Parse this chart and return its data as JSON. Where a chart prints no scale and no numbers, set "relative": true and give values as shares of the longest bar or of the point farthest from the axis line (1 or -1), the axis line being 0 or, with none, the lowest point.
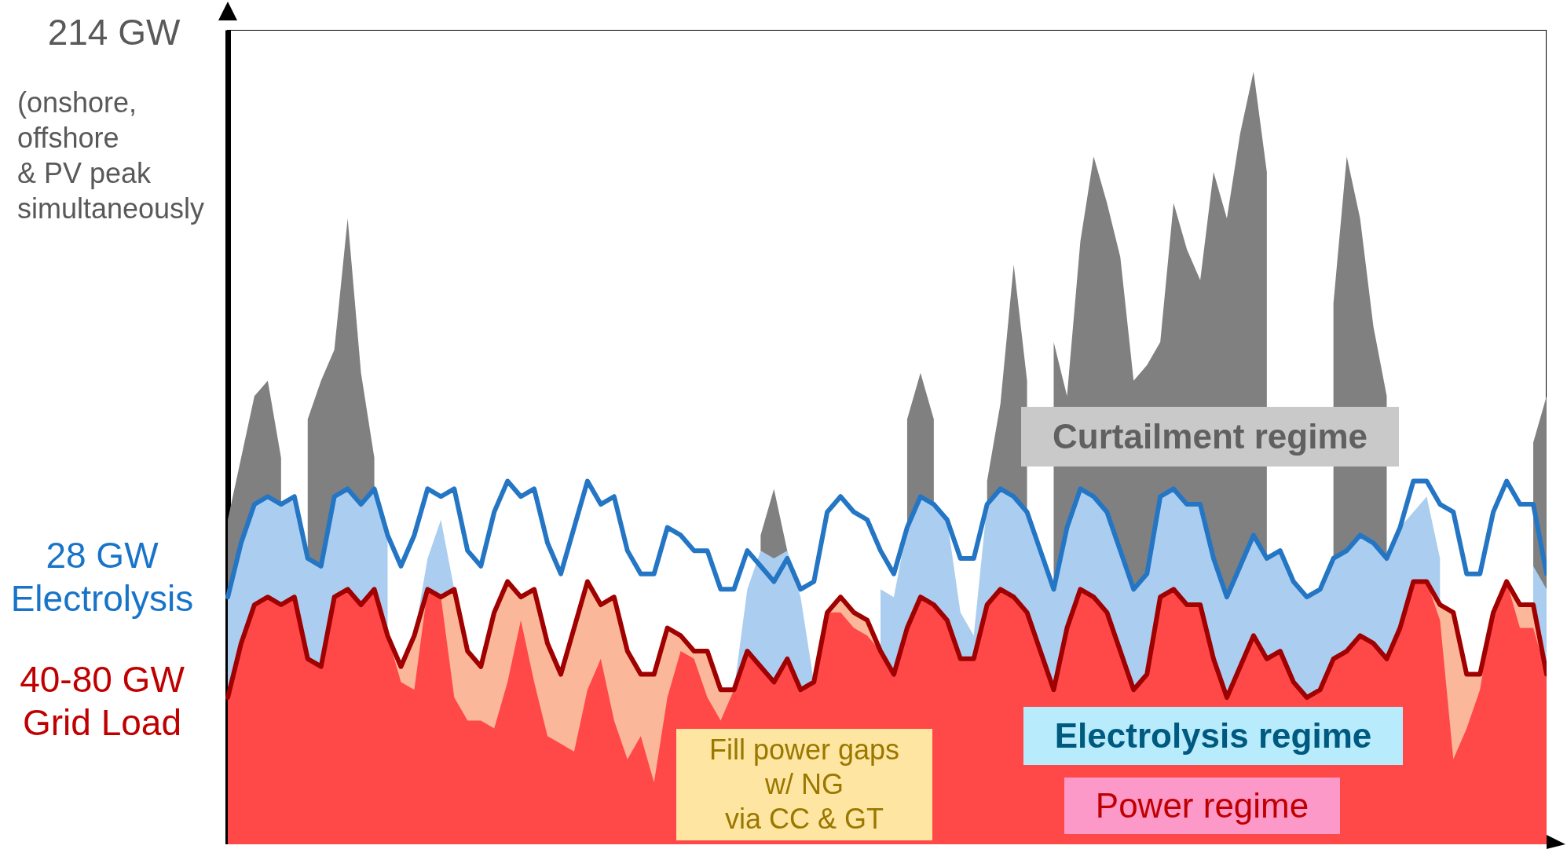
{
  "chart_data": {
    "type": "area",
    "relative": true,
    "categories": [
      null,
      null,
      null,
      null,
      null,
      null,
      null,
      null,
      null,
      null,
      null,
      null,
      null,
      null,
      null,
      null,
      null,
      null,
      null,
      null,
      null,
      null,
      null,
      null,
      null,
      null,
      null,
      null,
      null,
      null,
      null,
      null,
      null,
      null,
      null,
      null,
      null,
      null,
      null,
      null,
      null,
      null,
      null,
      null,
      null,
      null,
      null,
      null,
      null,
      null,
      null,
      null,
      null,
      null,
      null,
      null,
      null,
      null,
      null,
      null,
      null,
      null,
      null,
      null,
      null,
      null,
      null,
      null,
      null,
      null,
      null,
      null,
      null,
      null,
      null,
      null,
      null,
      null,
      null,
      null,
      null,
      null,
      null,
      null,
      null,
      null,
      null,
      null,
      null,
      null,
      null,
      null,
      null,
      null,
      null,
      null,
      null,
      null,
      null,
      null
    ],
    "series": [
      {
        "type": "area",
        "color": "#808080",
        "values": [
          0.42,
          0.5,
          0.58,
          0.6,
          0.5,
          null,
          0.55,
          0.6,
          0.64,
          0.81,
          0.61,
          0.5,
          null,
          null,
          null,
          null,
          null,
          null,
          null,
          null,
          null,
          null,
          null,
          null,
          null,
          null,
          null,
          null,
          null,
          null,
          null,
          null,
          null,
          null,
          null,
          null,
          null,
          null,
          null,
          null,
          0.4,
          0.46,
          0.38,
          null,
          null,
          null,
          null,
          null,
          null,
          null,
          null,
          0.55,
          0.61,
          0.55,
          null,
          null,
          null,
          0.47,
          0.57,
          0.75,
          0.6,
          null,
          0.65,
          0.58,
          0.78,
          0.89,
          0.83,
          0.76,
          0.6,
          0.62,
          0.65,
          0.83,
          0.77,
          0.73,
          0.87,
          0.81,
          0.92,
          1.0,
          0.87,
          null,
          null,
          null,
          null,
          0.7,
          0.89,
          0.81,
          0.67,
          0.58,
          null,
          null,
          null,
          null,
          null,
          null,
          null,
          null,
          null,
          null,
          0.52,
          0.58
        ]
      },
      {
        "type": "area",
        "color": "#abcef0",
        "values": [
          0.32,
          0.39,
          0.44,
          0.45,
          0.44,
          0.45,
          0.37,
          0.36,
          0.45,
          0.46,
          0.44,
          0.46,
          0.4,
          null,
          0.27,
          0.37,
          0.42,
          0.33,
          null,
          null,
          null,
          null,
          null,
          null,
          null,
          null,
          null,
          null,
          null,
          null,
          null,
          null,
          null,
          null,
          null,
          null,
          null,
          null,
          0.2,
          0.33,
          0.38,
          0.37,
          0.38,
          0.32,
          0.21,
          null,
          null,
          null,
          null,
          0.33,
          0.32,
          0.41,
          0.45,
          0.44,
          0.42,
          0.3,
          0.27,
          0.44,
          0.46,
          0.45,
          0.43,
          0.38,
          0.33,
          0.41,
          0.46,
          0.45,
          0.43,
          0.38,
          0.33,
          0.35,
          0.45,
          0.46,
          0.44,
          0.44,
          0.37,
          0.32,
          0.36,
          0.4,
          0.37,
          0.38,
          0.34,
          0.32,
          0.33,
          0.37,
          0.38,
          0.4,
          0.39,
          0.37,
          0.41,
          0.43,
          0.45,
          0.37,
          null,
          null,
          null,
          null,
          null,
          null,
          0.36,
          0.33
        ]
      },
      {
        "type": "area",
        "color": "#fbb79a",
        "values": [
          null,
          null,
          null,
          null,
          null,
          null,
          null,
          null,
          null,
          null,
          null,
          null,
          0.27,
          0.23,
          0.27,
          0.33,
          0.32,
          0.33,
          0.25,
          0.23,
          0.3,
          0.34,
          0.32,
          0.33,
          0.26,
          0.22,
          0.28,
          0.34,
          0.31,
          0.32,
          0.25,
          0.22,
          0.22,
          0.28,
          0.27,
          0.25,
          0.25,
          0.2,
          0.2,
          null,
          null,
          null,
          null,
          null,
          null,
          0.3,
          0.32,
          0.3,
          0.29,
          0.25,
          null,
          null,
          null,
          null,
          null,
          null,
          null,
          null,
          null,
          null,
          null,
          null,
          null,
          null,
          null,
          null,
          null,
          null,
          null,
          null,
          null,
          null,
          null,
          null,
          null,
          null,
          null,
          null,
          null,
          null,
          null,
          null,
          null,
          null,
          null,
          null,
          null,
          null,
          null,
          null,
          0.34,
          0.31,
          0.3,
          0.22,
          0.22,
          0.3,
          0.34,
          0.31,
          0.31,
          0.22
        ]
      },
      {
        "type": "area",
        "color": "#ff4848",
        "values": [
          0.19,
          0.26,
          0.31,
          0.32,
          0.31,
          0.32,
          0.24,
          0.23,
          0.32,
          0.33,
          0.31,
          0.33,
          0.27,
          0.21,
          0.2,
          0.33,
          0.32,
          0.19,
          0.16,
          0.16,
          0.15,
          0.21,
          0.29,
          0.21,
          0.14,
          0.13,
          0.12,
          0.2,
          0.24,
          0.16,
          0.11,
          0.14,
          0.08,
          0.19,
          0.25,
          0.24,
          0.19,
          0.16,
          0.2,
          0.25,
          0.23,
          0.21,
          0.24,
          0.2,
          0.21,
          0.3,
          0.3,
          0.28,
          0.27,
          0.25,
          0.22,
          0.28,
          0.32,
          0.31,
          0.29,
          0.24,
          0.24,
          0.31,
          0.33,
          0.32,
          0.3,
          0.25,
          0.2,
          0.28,
          0.33,
          0.32,
          0.3,
          0.25,
          0.2,
          0.22,
          0.32,
          0.33,
          0.31,
          0.31,
          0.24,
          0.19,
          0.23,
          0.27,
          0.24,
          0.25,
          0.21,
          0.19,
          0.2,
          0.24,
          0.25,
          0.27,
          0.26,
          0.24,
          0.28,
          0.34,
          0.34,
          0.29,
          0.11,
          0.15,
          0.2,
          0.3,
          0.34,
          0.28,
          0.28,
          0.22
        ]
      },
      {
        "type": "line",
        "color": "#2476c4",
        "values": [
          0.32,
          0.39,
          0.44,
          0.45,
          0.44,
          0.45,
          0.37,
          0.36,
          0.45,
          0.46,
          0.44,
          0.46,
          0.4,
          0.36,
          0.4,
          0.46,
          0.45,
          0.46,
          0.38,
          0.36,
          0.43,
          0.47,
          0.45,
          0.46,
          0.39,
          0.35,
          0.41,
          0.47,
          0.44,
          0.45,
          0.38,
          0.35,
          0.35,
          0.41,
          0.4,
          0.38,
          0.38,
          0.33,
          0.33,
          0.38,
          0.36,
          0.34,
          0.37,
          0.33,
          0.34,
          0.43,
          0.45,
          0.43,
          0.42,
          0.38,
          0.35,
          0.41,
          0.45,
          0.44,
          0.42,
          0.37,
          0.37,
          0.44,
          0.46,
          0.45,
          0.43,
          0.38,
          0.33,
          0.41,
          0.46,
          0.45,
          0.43,
          0.38,
          0.33,
          0.35,
          0.45,
          0.46,
          0.44,
          0.44,
          0.37,
          0.32,
          0.36,
          0.4,
          0.37,
          0.38,
          0.34,
          0.32,
          0.33,
          0.37,
          0.38,
          0.4,
          0.39,
          0.37,
          0.41,
          0.47,
          0.47,
          0.44,
          0.43,
          0.35,
          0.35,
          0.43,
          0.47,
          0.44,
          0.44,
          0.35
        ]
      },
      {
        "type": "line",
        "color": "#a00000",
        "values": [
          0.19,
          0.26,
          0.31,
          0.32,
          0.31,
          0.32,
          0.24,
          0.23,
          0.32,
          0.33,
          0.31,
          0.33,
          0.27,
          0.23,
          0.27,
          0.33,
          0.32,
          0.33,
          0.25,
          0.23,
          0.3,
          0.34,
          0.32,
          0.33,
          0.26,
          0.22,
          0.28,
          0.34,
          0.31,
          0.32,
          0.25,
          0.22,
          0.22,
          0.28,
          0.27,
          0.25,
          0.25,
          0.2,
          0.2,
          0.25,
          0.23,
          0.21,
          0.24,
          0.2,
          0.21,
          0.3,
          0.32,
          0.3,
          0.29,
          0.25,
          0.22,
          0.28,
          0.32,
          0.31,
          0.29,
          0.24,
          0.24,
          0.31,
          0.33,
          0.32,
          0.3,
          0.25,
          0.2,
          0.28,
          0.33,
          0.32,
          0.3,
          0.25,
          0.2,
          0.22,
          0.32,
          0.33,
          0.31,
          0.31,
          0.24,
          0.19,
          0.23,
          0.27,
          0.24,
          0.25,
          0.21,
          0.19,
          0.2,
          0.24,
          0.25,
          0.27,
          0.26,
          0.24,
          0.28,
          0.34,
          0.34,
          0.31,
          0.3,
          0.22,
          0.22,
          0.3,
          0.34,
          0.31,
          0.31,
          0.22
        ]
      }
    ],
    "annotations": [
      "214 GW",
      "(onshore,\noffshore\n& PV peak\nsimultaneously",
      "28 GW\nElectrolysis",
      "40-80 GW\nGrid Load",
      "Curtailment regime",
      "Electrolysis regime",
      "Power regime",
      "Fill power gaps\nw/ NG\nvia CC & GT"
    ]
  }
}
